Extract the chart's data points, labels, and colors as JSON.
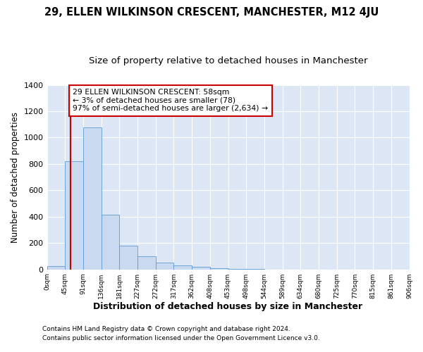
{
  "title": "29, ELLEN WILKINSON CRESCENT, MANCHESTER, M12 4JU",
  "subtitle": "Size of property relative to detached houses in Manchester",
  "xlabel": "Distribution of detached houses by size in Manchester",
  "ylabel": "Number of detached properties",
  "footnote1": "Contains HM Land Registry data © Crown copyright and database right 2024.",
  "footnote2": "Contains public sector information licensed under the Open Government Licence v3.0.",
  "bin_labels": [
    "0sqm",
    "45sqm",
    "91sqm",
    "136sqm",
    "181sqm",
    "227sqm",
    "272sqm",
    "317sqm",
    "362sqm",
    "408sqm",
    "453sqm",
    "498sqm",
    "544sqm",
    "589sqm",
    "634sqm",
    "680sqm",
    "725sqm",
    "770sqm",
    "815sqm",
    "861sqm",
    "906sqm"
  ],
  "bar_values": [
    25,
    820,
    1075,
    415,
    178,
    100,
    52,
    30,
    18,
    8,
    3,
    2,
    1,
    0,
    0,
    0,
    0,
    0,
    0,
    0
  ],
  "bar_color": "#c9d9f0",
  "bar_edgecolor": "#5b9bd5",
  "vline_x": 1.3,
  "vline_color": "#cc0000",
  "annotation_text": "29 ELLEN WILKINSON CRESCENT: 58sqm\n← 3% of detached houses are smaller (78)\n97% of semi-detached houses are larger (2,634) →",
  "annotation_box_color": "#cc0000",
  "ylim": [
    0,
    1400
  ],
  "yticks": [
    0,
    200,
    400,
    600,
    800,
    1000,
    1200,
    1400
  ],
  "background_color": "#dce6f5",
  "grid_color": "#ffffff",
  "title_fontsize": 10.5,
  "subtitle_fontsize": 9.5,
  "xlabel_fontsize": 9,
  "ylabel_fontsize": 8.5,
  "footnote_fontsize": 6.5
}
